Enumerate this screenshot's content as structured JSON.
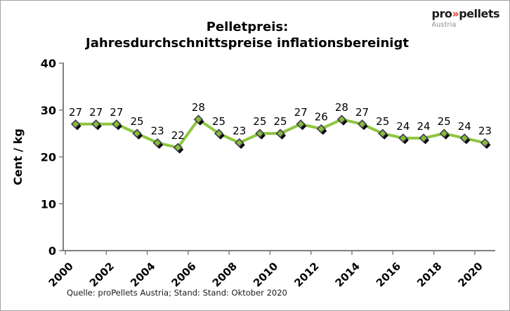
{
  "title": {
    "line1": "Pelletpreis:",
    "line2": "Jahresdurchschnittspreise inflationsbereinigt"
  },
  "logo": {
    "pro": "pro",
    "chevrons": "»",
    "pellets": "pellets",
    "subtitle": "Austria"
  },
  "source": "Quelle: proPellets Austria;  Stand: Stand:  Oktober 2020",
  "chart_data": {
    "type": "line",
    "x": [
      2000,
      2001,
      2002,
      2003,
      2004,
      2005,
      2006,
      2007,
      2008,
      2009,
      2010,
      2011,
      2012,
      2013,
      2014,
      2015,
      2016,
      2017,
      2018,
      2019,
      2020
    ],
    "series": [
      {
        "name": "Pelletpreis Jahresdurchschnitt inflationsbereinigt",
        "values": [
          27,
          27,
          27,
          25,
          23,
          22,
          28,
          25,
          23,
          25,
          25,
          27,
          26,
          28,
          27,
          25,
          24,
          24,
          25,
          24,
          23
        ]
      }
    ],
    "ylabel": "Cent / kg",
    "xlabel": "",
    "ylim": [
      0,
      40
    ],
    "yticks": [
      0,
      10,
      20,
      30,
      40
    ],
    "xticks": [
      2000,
      2002,
      2004,
      2006,
      2008,
      2010,
      2012,
      2014,
      2016,
      2018,
      2020
    ],
    "data_labels": true,
    "grid": false,
    "legend": "none",
    "colors": {
      "line": "#8DC63F",
      "marker_fill": "#89BC3B",
      "marker_border": "#3B3B4F",
      "marker_shadow": "#000000",
      "axis": "#7F7F7F",
      "text": "#000000"
    }
  }
}
